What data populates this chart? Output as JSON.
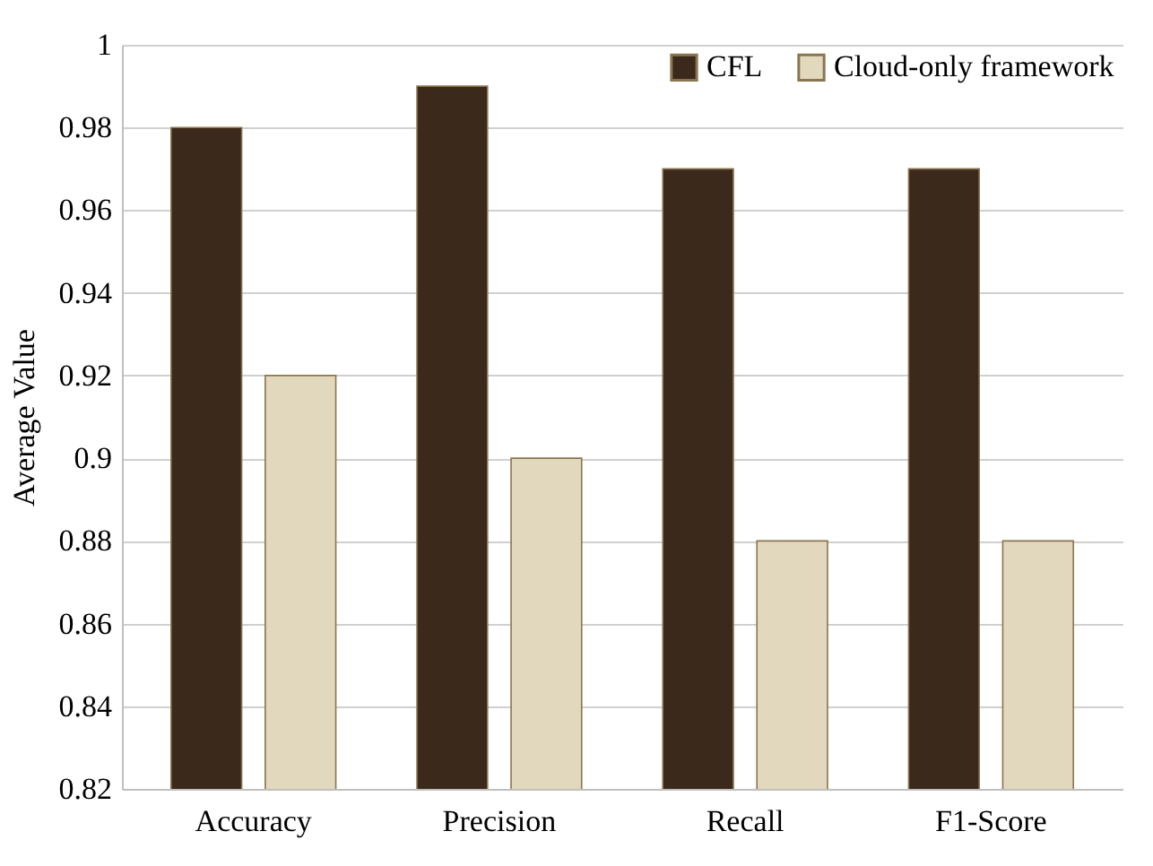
{
  "chart_data": {
    "type": "bar",
    "ylabel": "Average Value",
    "categories": [
      "Accuracy",
      "Precision",
      "Recall",
      "F1-Score"
    ],
    "series": [
      {
        "name": "CFL",
        "color": "#3b2a1c",
        "values": [
          0.98,
          0.99,
          0.97,
          0.97
        ]
      },
      {
        "name": "Cloud-only framework",
        "color": "#e2d8bd",
        "values": [
          0.92,
          0.9,
          0.88,
          0.88
        ]
      }
    ],
    "ylim": [
      0.82,
      1
    ],
    "yticks": [
      0.82,
      0.84,
      0.86,
      0.88,
      0.9,
      0.92,
      0.94,
      0.96,
      0.98,
      1
    ],
    "grid": "y",
    "legend": "top right"
  }
}
